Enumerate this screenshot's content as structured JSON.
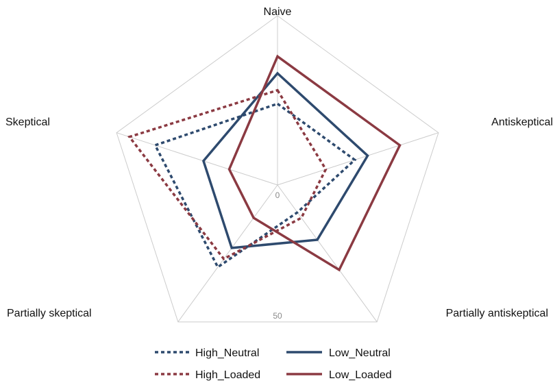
{
  "chart_data": {
    "type": "radar",
    "axes": [
      "Naive",
      "Antiskeptical",
      "Partially antiskeptical",
      "Partially skeptical",
      "Skeptical"
    ],
    "tick_labels": [
      "0",
      "50"
    ],
    "rlim": [
      0,
      50
    ],
    "series": [
      {
        "name": "High_Neutral",
        "style": "dotted",
        "color": "#2e4a6e",
        "values": [
          24,
          24,
          10,
          30,
          38
        ]
      },
      {
        "name": "Low_Neutral",
        "style": "solid",
        "color": "#2e4a6e",
        "values": [
          33,
          28,
          20,
          23,
          23
        ]
      },
      {
        "name": "High_Loaded",
        "style": "dotted",
        "color": "#8b3a42",
        "values": [
          28,
          15,
          12,
          27,
          46
        ]
      },
      {
        "name": "Low_Loaded",
        "style": "solid",
        "color": "#8b3a42",
        "values": [
          38,
          38,
          31,
          12,
          15
        ]
      }
    ],
    "legend_position": "bottom",
    "grid_color": "#cccccc"
  }
}
